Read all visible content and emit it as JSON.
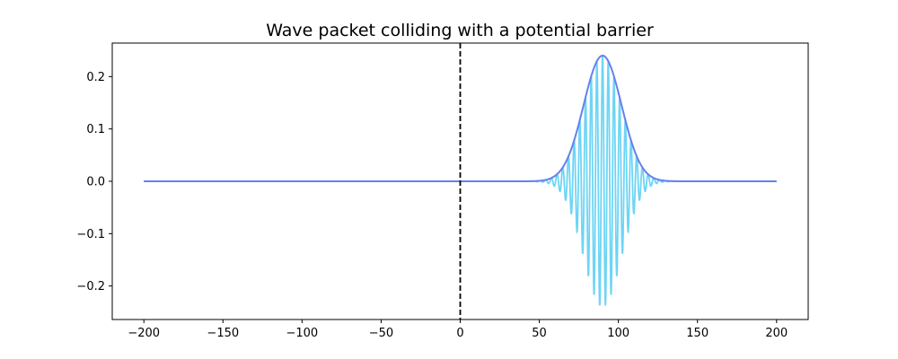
{
  "chart_data": {
    "type": "line",
    "title": "Wave packet colliding with a potential barrier",
    "xlabel": "",
    "ylabel": "",
    "xlim": [
      -220,
      220
    ],
    "ylim": [
      -0.264,
      0.264
    ],
    "x_ticks": [
      -200,
      -150,
      -100,
      -50,
      0,
      50,
      100,
      150,
      200
    ],
    "x_tick_labels": [
      "−200",
      "−150",
      "−100",
      "−50",
      "0",
      "50",
      "100",
      "150",
      "200"
    ],
    "y_ticks": [
      0.2,
      0.1,
      0.0,
      -0.1,
      -0.2
    ],
    "y_tick_labels": [
      "0.2",
      "0.1",
      "0.0",
      "−0.1",
      "−0.2"
    ],
    "grid": false,
    "barrier": {
      "x": 0,
      "style": "dashed",
      "color": "#000000"
    },
    "series": [
      {
        "kind": "oscillating_wave",
        "color": "#6dd5f5",
        "x_range": [
          -200,
          200
        ],
        "packet_center": 90,
        "packet_width": 12,
        "amplitude": 0.24,
        "wavelength": 3.6
      },
      {
        "kind": "envelope",
        "color": "#6680ee",
        "x_range": [
          -200,
          200
        ],
        "packet_center": 90,
        "packet_width": 12,
        "amplitude": 0.24
      }
    ]
  }
}
